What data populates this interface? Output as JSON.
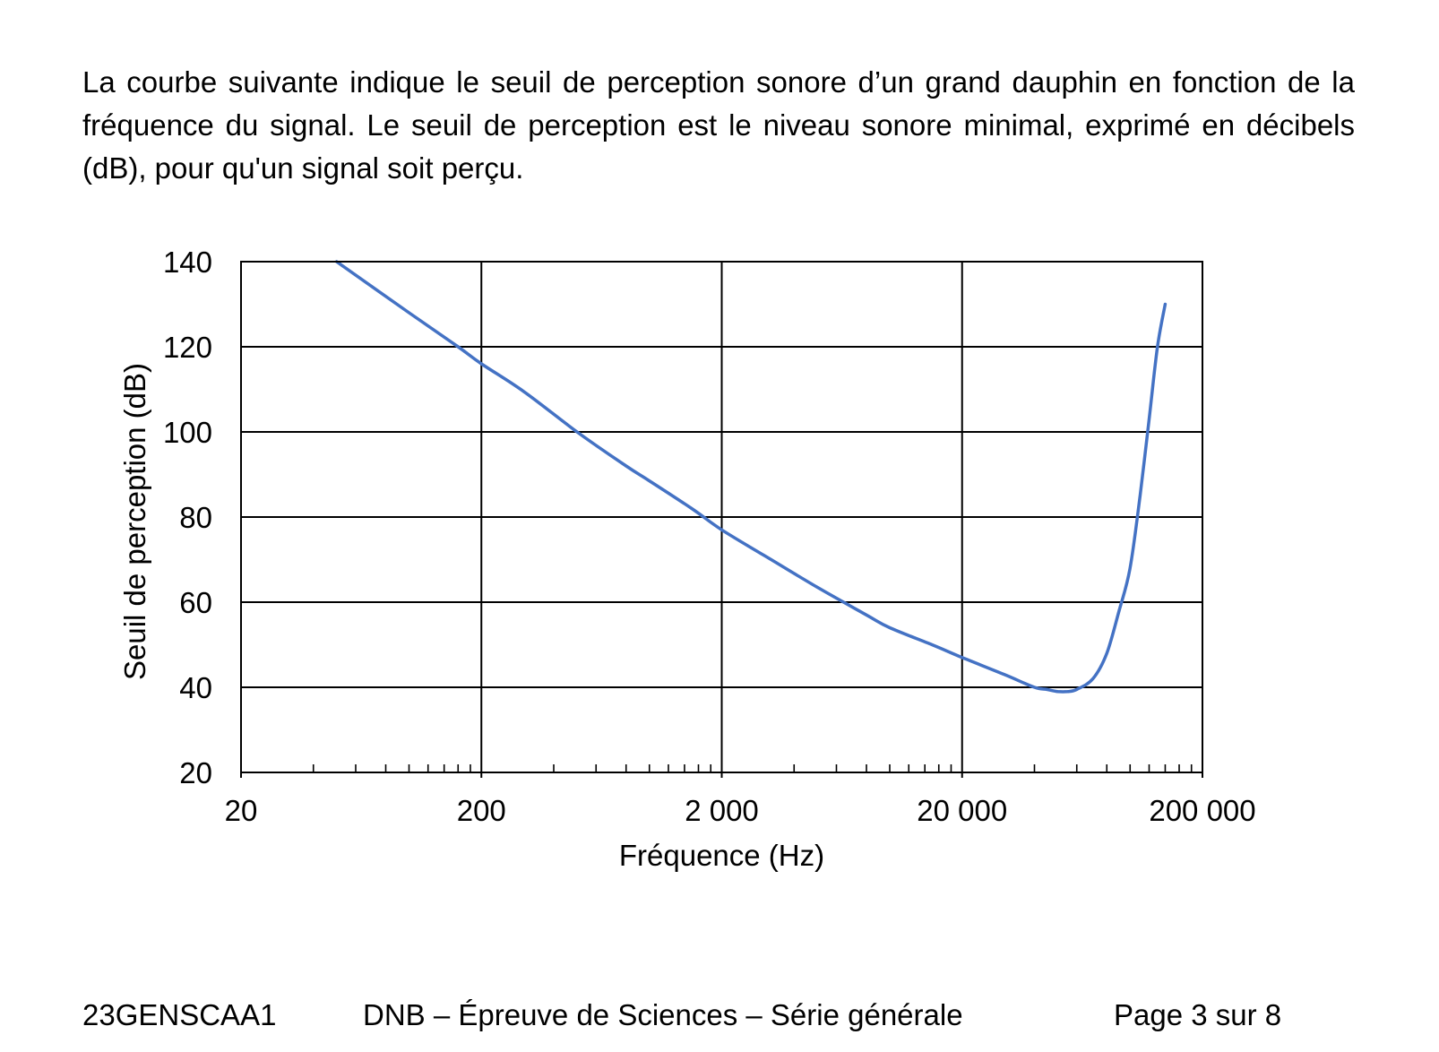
{
  "document": {
    "paragraph": "La courbe suivante indique le seuil de perception sonore d’un grand dauphin en fonction de la fréquence du signal. Le seuil de perception est le niveau sonore minimal, exprimé en décibels (dB), pour qu'un signal soit perçu.",
    "footer": {
      "code": "23GENSCAA1",
      "exam": "DNB – Épreuve de Sciences – Série générale",
      "page": "Page 3 sur 8"
    }
  },
  "chart_data": {
    "type": "line",
    "title": "",
    "xlabel": "Fréquence (Hz)",
    "ylabel": "Seuil de perception (dB)",
    "x_scale": "log",
    "xlim": [
      20,
      200000
    ],
    "ylim": [
      20,
      140
    ],
    "x_ticks": [
      20,
      200,
      2000,
      20000,
      200000
    ],
    "x_tick_labels": [
      "20",
      "200",
      "2 000",
      "20 000",
      "200 000"
    ],
    "y_ticks": [
      20,
      40,
      60,
      80,
      100,
      120,
      140
    ],
    "y_tick_labels": [
      "20",
      "40",
      "60",
      "80",
      "100",
      "120",
      "140"
    ],
    "grid": true,
    "series": [
      {
        "color": "#4472c4",
        "x": [
          50,
          100,
          160,
          200,
          300,
          500,
          800,
          1000,
          1500,
          2000,
          3000,
          5000,
          8000,
          10000,
          15000,
          20000,
          30000,
          40000,
          45000,
          50000,
          55000,
          60000,
          70000,
          80000,
          90000,
          100000,
          110000,
          120000,
          130000,
          140000
        ],
        "y": [
          140,
          128,
          120,
          116,
          109.5,
          100,
          92,
          88.5,
          82,
          77,
          71,
          63.5,
          57,
          54,
          50,
          47,
          43,
          40,
          39.5,
          39,
          39,
          39.5,
          42,
          48,
          58,
          68,
          85,
          103,
          120,
          130
        ]
      }
    ]
  }
}
